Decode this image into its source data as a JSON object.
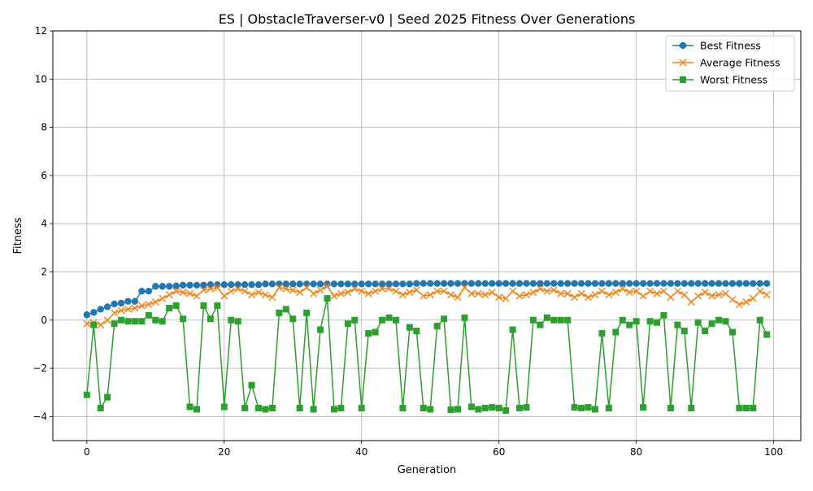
{
  "chart_data": {
    "type": "line",
    "title": "ES | ObstacleTraverser-v0 | Seed 2025 Fitness Over Generations",
    "xlabel": "Generation",
    "ylabel": "Fitness",
    "xlim": [
      -4.95,
      103.95
    ],
    "ylim": [
      -5,
      12
    ],
    "xticks": [
      0,
      20,
      40,
      60,
      80,
      100
    ],
    "yticks": [
      -4,
      -2,
      0,
      2,
      4,
      6,
      8,
      10,
      12
    ],
    "xtick_labels": [
      "0",
      "20",
      "40",
      "60",
      "80",
      "100"
    ],
    "ytick_labels": [
      "−4",
      "−2",
      "0",
      "2",
      "4",
      "6",
      "8",
      "10",
      "12"
    ],
    "grid": true,
    "legend_position": "top-right",
    "series": [
      {
        "name": "Best Fitness",
        "color": "#1f77b4",
        "marker": "circle",
        "values": [
          0.22,
          0.32,
          0.45,
          0.55,
          0.67,
          0.7,
          0.78,
          0.78,
          1.2,
          1.2,
          1.4,
          1.4,
          1.4,
          1.42,
          1.45,
          1.45,
          1.45,
          1.45,
          1.47,
          1.47,
          1.47,
          1.47,
          1.47,
          1.47,
          1.47,
          1.47,
          1.5,
          1.5,
          1.5,
          1.5,
          1.5,
          1.5,
          1.5,
          1.5,
          1.5,
          1.5,
          1.5,
          1.5,
          1.5,
          1.5,
          1.5,
          1.5,
          1.5,
          1.5,
          1.5,
          1.5,
          1.5,
          1.5,
          1.52,
          1.52,
          1.52,
          1.52,
          1.52,
          1.52,
          1.52,
          1.52,
          1.52,
          1.52,
          1.52,
          1.52,
          1.52,
          1.52,
          1.52,
          1.52,
          1.52,
          1.52,
          1.52,
          1.52,
          1.52,
          1.52,
          1.52,
          1.52,
          1.52,
          1.52,
          1.52,
          1.52,
          1.52,
          1.52,
          1.52,
          1.52,
          1.52,
          1.52,
          1.52,
          1.52,
          1.52,
          1.52,
          1.52,
          1.52,
          1.52,
          1.52,
          1.52,
          1.52,
          1.52,
          1.52,
          1.52,
          1.52,
          1.52,
          1.52,
          1.52,
          1.52
        ]
      },
      {
        "name": "Average Fitness",
        "color": "#ff7f0e",
        "marker": "x",
        "values": [
          -0.15,
          -0.1,
          -0.2,
          0.0,
          0.3,
          0.4,
          0.45,
          0.5,
          0.6,
          0.65,
          0.75,
          0.9,
          1.05,
          1.2,
          1.15,
          1.1,
          1.0,
          1.25,
          1.3,
          1.35,
          1.0,
          1.2,
          1.3,
          1.2,
          1.05,
          1.15,
          1.05,
          0.95,
          1.35,
          1.3,
          1.25,
          1.15,
          1.35,
          1.1,
          1.25,
          1.4,
          1.0,
          1.1,
          1.15,
          1.3,
          1.2,
          1.1,
          1.2,
          1.3,
          1.3,
          1.2,
          1.05,
          1.15,
          1.25,
          1.0,
          1.05,
          1.2,
          1.2,
          1.05,
          0.95,
          1.35,
          1.1,
          1.1,
          1.05,
          1.15,
          0.95,
          0.9,
          1.2,
          1.0,
          1.05,
          1.15,
          1.3,
          1.2,
          1.25,
          1.1,
          1.1,
          0.95,
          1.1,
          0.95,
          1.05,
          1.2,
          1.05,
          1.15,
          1.3,
          1.15,
          1.2,
          1.0,
          1.2,
          1.1,
          1.2,
          0.95,
          1.2,
          1.05,
          0.75,
          1.0,
          1.15,
          1.0,
          1.05,
          1.1,
          0.85,
          0.65,
          0.75,
          0.9,
          1.2,
          1.05
        ]
      },
      {
        "name": "Worst Fitness",
        "color": "#2ca02c",
        "marker": "square",
        "values": [
          -3.1,
          -0.2,
          -3.65,
          -3.2,
          -0.15,
          0.0,
          -0.05,
          -0.05,
          -0.05,
          0.2,
          0.0,
          -0.05,
          0.5,
          0.6,
          0.05,
          -3.6,
          -3.7,
          0.6,
          0.05,
          0.6,
          -3.6,
          0.0,
          -0.05,
          -3.65,
          -2.7,
          -3.65,
          -3.7,
          -3.65,
          0.3,
          0.45,
          0.05,
          -3.65,
          0.3,
          -3.7,
          -0.4,
          0.9,
          -3.7,
          -3.65,
          -0.15,
          0.0,
          -3.65,
          -0.55,
          -0.5,
          0.0,
          0.1,
          0.0,
          -3.65,
          -0.3,
          -0.45,
          -3.65,
          -3.7,
          -0.25,
          0.05,
          -3.72,
          -3.7,
          0.1,
          -3.6,
          -3.7,
          -3.65,
          -3.62,
          -3.65,
          -3.75,
          -0.4,
          -3.65,
          -3.62,
          0.0,
          -0.2,
          0.1,
          0.0,
          0.0,
          0.0,
          -3.62,
          -3.65,
          -3.62,
          -3.7,
          -0.55,
          -3.65,
          -0.5,
          0.0,
          -0.2,
          -0.05,
          -3.62,
          -0.05,
          -0.1,
          0.2,
          -3.65,
          -0.2,
          -0.45,
          -3.65,
          -0.1,
          -0.45,
          -0.15,
          0.0,
          -0.05,
          -0.5,
          -3.65,
          -3.65,
          -3.65,
          0.0,
          -0.6
        ]
      }
    ]
  }
}
